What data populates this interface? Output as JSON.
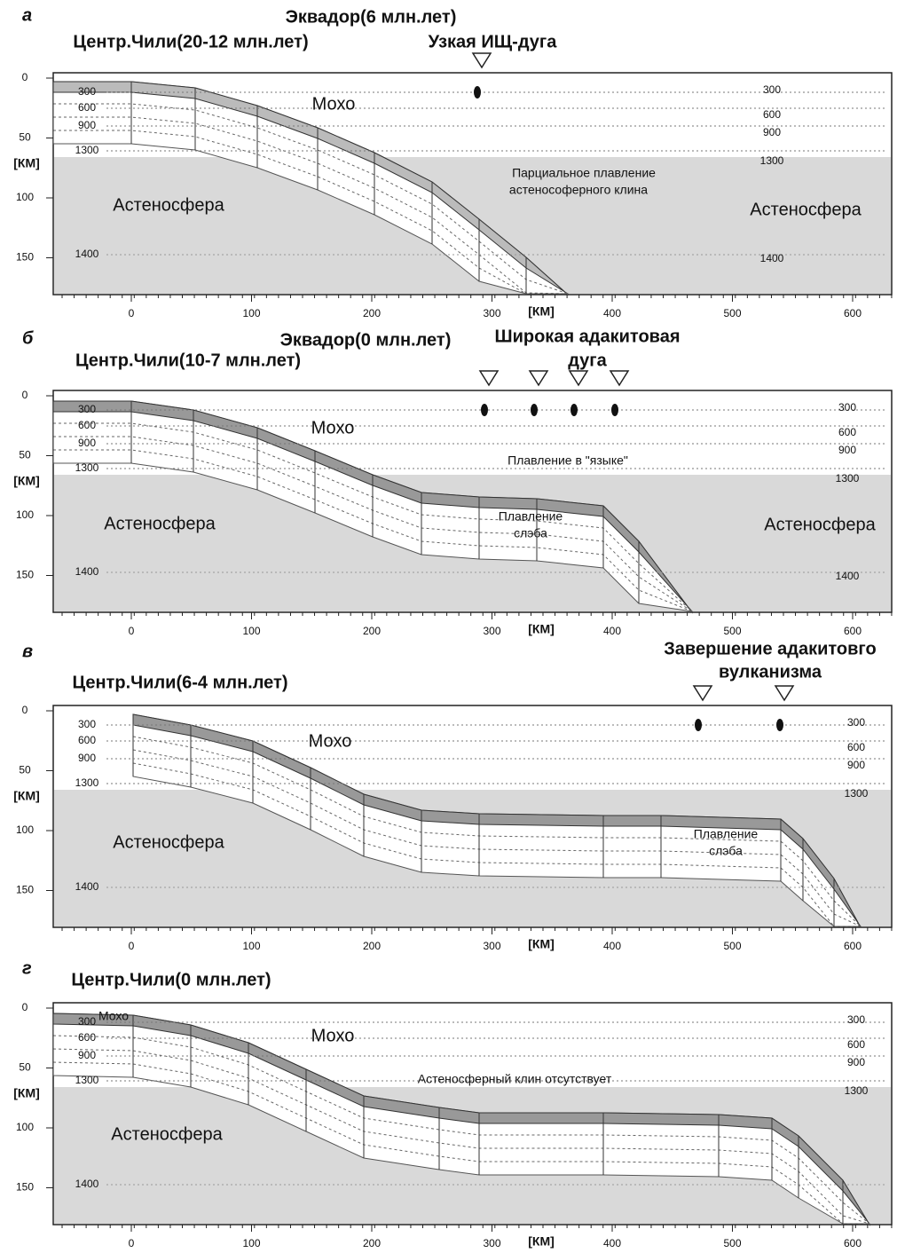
{
  "panels": [
    {
      "letter": "а",
      "titles": [
        "Эквадор(6 млн.лет)",
        "Центр.Чили(20-12 млн.лет)",
        "Узкая ИЩ-дуга"
      ],
      "labels": [
        "Мохо",
        "Парциальное плавление",
        "астенософерного клина",
        "Астеносфера",
        "Астеносфера"
      ],
      "isotherms_left": [
        "300",
        "600",
        "900",
        "1300",
        "1400"
      ],
      "isotherms_right": [
        "300",
        "600",
        "900",
        "1300",
        "1400"
      ],
      "x_ticks": [
        0,
        100,
        200,
        300,
        400,
        500,
        600
      ],
      "y_ticks": [
        0,
        50,
        100,
        150
      ],
      "x_unit": "[КМ]",
      "y_unit": "[КМ]"
    },
    {
      "letter": "б",
      "titles": [
        "Эквадор(0 млн.лет)",
        "Центр.Чили(10-7 млн.лет)",
        "Широкая адакитовая",
        "дуга"
      ],
      "labels": [
        "Мохо",
        "Плавление в \"языке\"",
        "Плавление",
        "слэба",
        "Астеносфера",
        "Астеносфера"
      ],
      "isotherms_left": [
        "300",
        "600",
        "900",
        "1300",
        "1400"
      ],
      "isotherms_right": [
        "300",
        "600",
        "900",
        "1300",
        "1400"
      ],
      "x_ticks": [
        0,
        100,
        200,
        300,
        400,
        500,
        600
      ],
      "y_ticks": [
        0,
        50,
        100,
        150
      ],
      "x_unit": "[КМ]",
      "y_unit": "[КМ]"
    },
    {
      "letter": "в",
      "titles": [
        "Центр.Чили(6-4 млн.лет)",
        "Завершение адакитовго",
        "вулканизма"
      ],
      "labels": [
        "Мохо",
        "Плавление",
        "слэба",
        "Астеносфера"
      ],
      "isotherms_left": [
        "300",
        "600",
        "900",
        "1300",
        "1400"
      ],
      "isotherms_right": [
        "300",
        "600",
        "900",
        "1300"
      ],
      "x_ticks": [
        0,
        100,
        200,
        300,
        400,
        500,
        600
      ],
      "y_ticks": [
        0,
        50,
        100,
        150
      ],
      "x_unit": "[КМ]",
      "y_unit": "[КМ]"
    },
    {
      "letter": "г",
      "titles": [
        "Центр.Чили(0 млн.лет)"
      ],
      "labels": [
        "Мохо",
        "Мохо",
        "Астеносферный клин отсутствует",
        "Астеносфера"
      ],
      "isotherms_left": [
        "300",
        "600",
        "900",
        "1300",
        "1400"
      ],
      "isotherms_right": [
        "300",
        "600",
        "900",
        "1300"
      ],
      "x_ticks": [
        0,
        100,
        200,
        300,
        400,
        500,
        600
      ],
      "y_ticks": [
        0,
        50,
        100,
        150
      ],
      "x_unit": "[КМ]",
      "y_unit": "[КМ]"
    }
  ]
}
